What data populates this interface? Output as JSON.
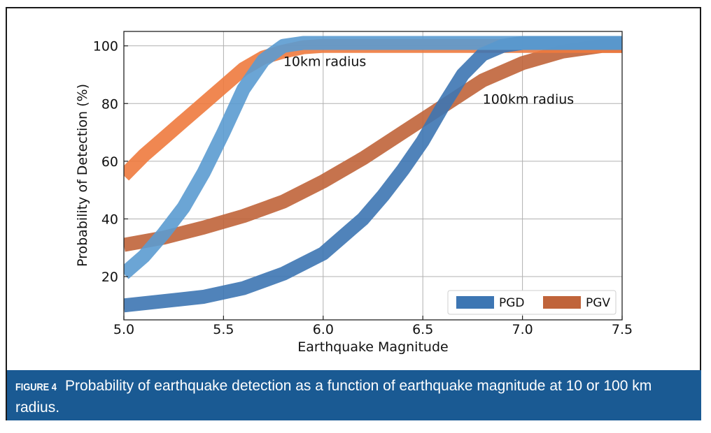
{
  "colors": {
    "pgd_10km": "#5b9bd0",
    "pgv_10km": "#ee7a3e",
    "pgd_100km": "#3d76b3",
    "pgv_100km": "#c0643a",
    "caption_bg": "#1a5a93",
    "grid": "#b0b0b0"
  },
  "caption": {
    "label": "FIGURE 4",
    "text": "Probability of earthquake detection as a function of earthquake magnitude at 10 or 100 km radius."
  },
  "chart_data": {
    "type": "line",
    "title": "",
    "xlabel": "Earthquake Magnitude",
    "ylabel": "Probability of Detection (%)",
    "xlim": [
      5.0,
      7.5
    ],
    "ylim": [
      5,
      105
    ],
    "xticks": [
      5.0,
      5.5,
      6.0,
      6.5,
      7.0,
      7.5
    ],
    "xtick_labels": [
      "5.0",
      "5.5",
      "6.0",
      "6.5",
      "7.0",
      "7.5"
    ],
    "yticks": [
      20,
      40,
      60,
      80,
      100
    ],
    "ytick_labels": [
      "20",
      "40",
      "60",
      "80",
      "100"
    ],
    "grid": true,
    "annotations": [
      {
        "text": "10km radius",
        "x": 5.8,
        "y": 93
      },
      {
        "text": "100km radius",
        "x": 6.8,
        "y": 80
      }
    ],
    "legend": {
      "placement": "lower-right",
      "entries": [
        "PGD",
        "PGV"
      ]
    },
    "series": [
      {
        "name": "PGD",
        "radius": "10km",
        "color_key": "pgd_10km",
        "x": [
          5.0,
          5.1,
          5.2,
          5.3,
          5.4,
          5.5,
          5.6,
          5.7,
          5.8,
          5.9,
          6.0,
          6.1,
          6.5,
          7.0,
          7.5
        ],
        "y": [
          21,
          27,
          35,
          44,
          56,
          70,
          85,
          95,
          100,
          101,
          101,
          101,
          101,
          101,
          101
        ]
      },
      {
        "name": "PGV",
        "radius": "10km",
        "color_key": "pgv_10km",
        "x": [
          5.0,
          5.1,
          5.2,
          5.3,
          5.4,
          5.5,
          5.6,
          5.7,
          5.8,
          5.9,
          6.0,
          6.1,
          6.5,
          7.0,
          7.5
        ],
        "y": [
          55,
          62,
          68,
          74,
          80,
          86,
          92,
          96,
          98,
          99.5,
          100,
          100,
          100,
          100,
          100
        ]
      },
      {
        "name": "PGD",
        "radius": "100km",
        "color_key": "pgd_100km",
        "x": [
          5.0,
          5.2,
          5.4,
          5.6,
          5.8,
          6.0,
          6.1,
          6.2,
          6.3,
          6.4,
          6.5,
          6.6,
          6.7,
          6.8,
          6.9,
          7.0,
          7.2,
          7.5
        ],
        "y": [
          10,
          11.5,
          13,
          16,
          21,
          28,
          34,
          40,
          48,
          57,
          67,
          79,
          90,
          97,
          100,
          101,
          101,
          101
        ]
      },
      {
        "name": "PGV",
        "radius": "100km",
        "color_key": "pgv_100km",
        "x": [
          5.0,
          5.2,
          5.4,
          5.6,
          5.8,
          6.0,
          6.2,
          6.4,
          6.6,
          6.8,
          7.0,
          7.2,
          7.4,
          7.5
        ],
        "y": [
          31,
          33.5,
          37,
          41,
          46,
          53,
          61,
          70,
          79,
          88,
          94,
          98,
          100,
          100
        ]
      }
    ]
  }
}
